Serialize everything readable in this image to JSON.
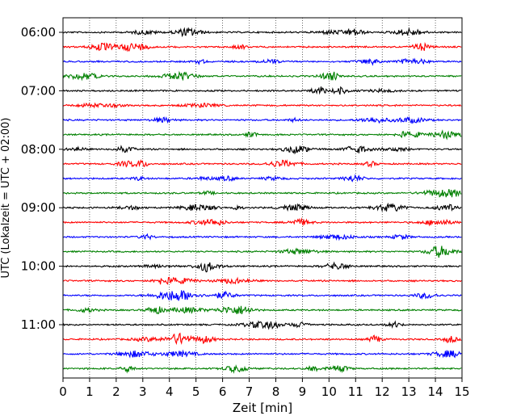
{
  "chart_data": {
    "type": "line",
    "title": "",
    "xlabel": "Zeit  [min]",
    "ylabel": "UTC (Lokalzeit = UTC + 02:00)",
    "xlim": [
      0,
      15
    ],
    "xticks": [
      0,
      1,
      2,
      3,
      4,
      5,
      6,
      7,
      8,
      9,
      10,
      11,
      12,
      13,
      14,
      15
    ],
    "y_tick_labels": [
      "06:00",
      "07:00",
      "08:00",
      "09:00",
      "10:00",
      "11:00"
    ],
    "trace_interval_min": 15,
    "start_time": "06:00",
    "trace_count": 24,
    "color_cycle": [
      "#000000",
      "#ff0000",
      "#0000ff",
      "#008000"
    ],
    "grid": "vertical dotted lines at each minute"
  }
}
